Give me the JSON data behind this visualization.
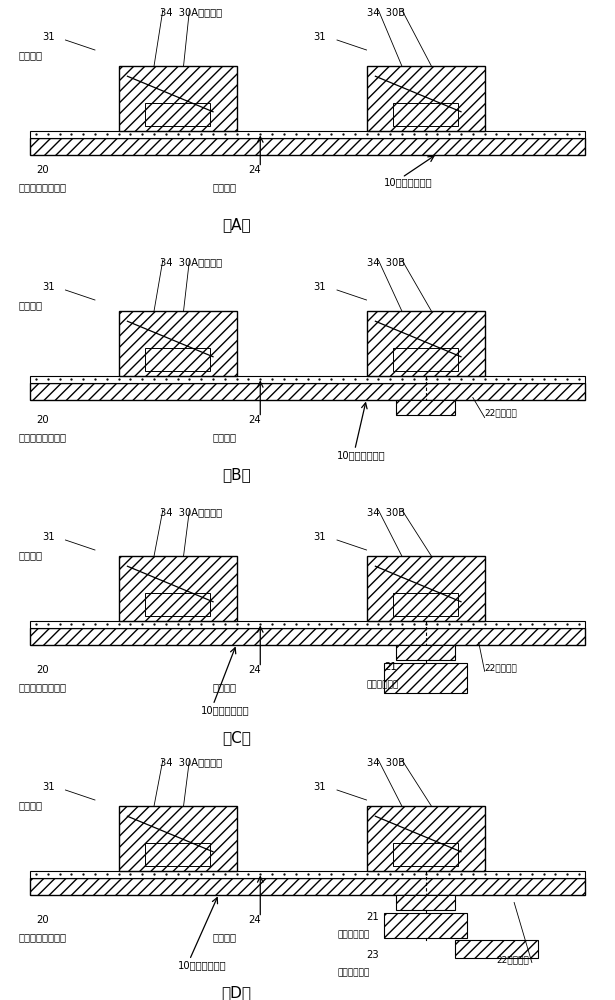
{
  "bg_color": "#ffffff",
  "fig_w": 6.15,
  "fig_h": 10.0,
  "dpi": 100,
  "font_name": "SimHei",
  "panels": [
    {
      "id": "A",
      "label": "（A）",
      "has_output": false,
      "has_comm": false,
      "has_ctrl": false
    },
    {
      "id": "B",
      "label": "（B）",
      "has_output": true,
      "has_comm": false,
      "has_ctrl": false
    },
    {
      "id": "C",
      "label": "（C）",
      "has_output": true,
      "has_comm": true,
      "has_ctrl": false
    },
    {
      "id": "D",
      "label": "（D）",
      "has_output": true,
      "has_comm": true,
      "has_ctrl": true
    }
  ],
  "lbl_34_30A": "34  30A电子设备",
  "lbl_34_30B": "34  30B",
  "lbl_31": "31",
  "lbl_tongxin": "通信工凷",
  "lbl_20": "20",
  "lbl_diyi_wg": "第一高频信号波导",
  "lbl_24": "24",
  "lbl_baochi": "保持元件",
  "lbl_10": "10信号传送装置",
  "lbl_22": "22输出单元",
  "lbl_21": "21",
  "lbl_diyi_comm": "第一通信装置",
  "lbl_23": "23",
  "lbl_ctrl": "第一控制单元"
}
